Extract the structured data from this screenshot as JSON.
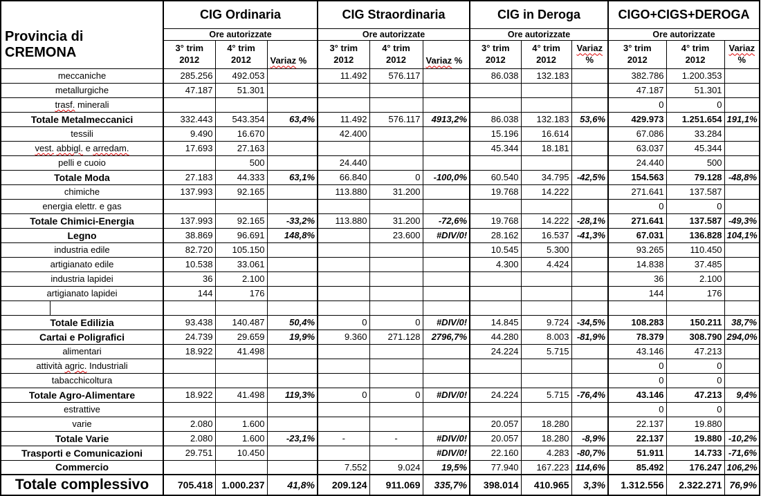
{
  "header": {
    "title_line1": "Provincia di",
    "title_line2": "CREMONA",
    "groups": [
      {
        "title": "CIG Ordinaria",
        "subtitle": "Ore autorizzate",
        "variaz_two_line": false
      },
      {
        "title": "CIG Straordinaria",
        "subtitle": "Ore autorizzate",
        "variaz_two_line": false
      },
      {
        "title": "CIG in Deroga",
        "subtitle": "Ore autorizzate",
        "variaz_two_line": true
      },
      {
        "title": "CIGO+CIGS+DEROGA",
        "subtitle": "Ore autorizzate",
        "variaz_two_line": true
      }
    ],
    "col_q3_line1": "3° trim",
    "col_q3_line2": "2012",
    "col_q4_line1": "4° trim",
    "col_q4_line2": "2012",
    "variaz_word": "Variaz",
    "percent_sign": "%"
  },
  "rows": [
    {
      "label": "meccaniche",
      "style": "plain",
      "squiggle": [],
      "cells": [
        "285.256",
        "492.053",
        "",
        "11.492",
        "576.117",
        "",
        "86.038",
        "132.183",
        "",
        "382.786",
        "1.200.353",
        ""
      ]
    },
    {
      "label": "metallurgiche",
      "style": "plain",
      "squiggle": [],
      "cells": [
        "47.187",
        "51.301",
        "",
        "",
        "",
        "",
        "",
        "",
        "",
        "47.187",
        "51.301",
        ""
      ]
    },
    {
      "label": "trasf. minerali",
      "style": "plain",
      "squiggle": [
        "trasf."
      ],
      "cells": [
        "",
        "",
        "",
        "",
        "",
        "",
        "",
        "",
        "",
        "0",
        "0",
        ""
      ]
    },
    {
      "label": "Totale Metalmeccanici",
      "style": "total",
      "squiggle": [],
      "cells": [
        "332.443",
        "543.354",
        "63,4%",
        "11.492",
        "576.117",
        "4913,2%",
        "86.038",
        "132.183",
        "53,6%",
        "429.973",
        "1.251.654",
        "191,1%"
      ]
    },
    {
      "label": "tessili",
      "style": "plain",
      "squiggle": [],
      "cells": [
        "9.490",
        "16.670",
        "",
        "42.400",
        "",
        "",
        "15.196",
        "16.614",
        "",
        "67.086",
        "33.284",
        ""
      ]
    },
    {
      "label": "vest. abbigl. e arredam.",
      "style": "plain",
      "squiggle": [
        "vest.",
        "abbigl.",
        "arredam."
      ],
      "cells": [
        "17.693",
        "27.163",
        "",
        "",
        "",
        "",
        "45.344",
        "18.181",
        "",
        "63.037",
        "45.344",
        ""
      ]
    },
    {
      "label": "pelli e cuoio",
      "style": "plain",
      "squiggle": [],
      "cells": [
        "",
        "500",
        "",
        "24.440",
        "",
        "",
        "",
        "",
        "",
        "24.440",
        "500",
        ""
      ]
    },
    {
      "label": "Totale Moda",
      "style": "total",
      "squiggle": [],
      "cells": [
        "27.183",
        "44.333",
        "63,1%",
        "66.840",
        "0",
        "-100,0%",
        "60.540",
        "34.795",
        "-42,5%",
        "154.563",
        "79.128",
        "-48,8%"
      ]
    },
    {
      "label": "chimiche",
      "style": "plain",
      "squiggle": [],
      "cells": [
        "137.993",
        "92.165",
        "",
        "113.880",
        "31.200",
        "",
        "19.768",
        "14.222",
        "",
        "271.641",
        "137.587",
        ""
      ]
    },
    {
      "label": "energia elettr. e gas",
      "style": "plain",
      "squiggle": [],
      "cells": [
        "",
        "",
        "",
        "",
        "",
        "",
        "",
        "",
        "",
        "0",
        "0",
        ""
      ]
    },
    {
      "label": "Totale Chimici-Energia",
      "style": "total",
      "squiggle": [],
      "cells": [
        "137.993",
        "92.165",
        "-33,2%",
        "113.880",
        "31.200",
        "-72,6%",
        "19.768",
        "14.222",
        "-28,1%",
        "271.641",
        "137.587",
        "-49,3%"
      ]
    },
    {
      "label": "Legno",
      "style": "total",
      "squiggle": [],
      "cells": [
        "38.869",
        "96.691",
        "148,8%",
        "",
        "23.600",
        "#DIV/0!",
        "28.162",
        "16.537",
        "-41,3%",
        "67.031",
        "136.828",
        "104,1%"
      ]
    },
    {
      "label": "industria edile",
      "style": "plain",
      "squiggle": [],
      "cells": [
        "82.720",
        "105.150",
        "",
        "",
        "",
        "",
        "10.545",
        "5.300",
        "",
        "93.265",
        "110.450",
        ""
      ]
    },
    {
      "label": "artigianato edile",
      "style": "plain",
      "squiggle": [],
      "cells": [
        "10.538",
        "33.061",
        "",
        "",
        "",
        "",
        "4.300",
        "4.424",
        "",
        "14.838",
        "37.485",
        ""
      ]
    },
    {
      "label": "industria lapidei",
      "style": "plain",
      "squiggle": [],
      "cells": [
        "36",
        "2.100",
        "",
        "",
        "",
        "",
        "",
        "",
        "",
        "36",
        "2.100",
        ""
      ]
    },
    {
      "label": "artigianato lapidei",
      "style": "plain",
      "squiggle": [],
      "cells": [
        "144",
        "176",
        "",
        "",
        "",
        "",
        "",
        "",
        "",
        "144",
        "176",
        ""
      ]
    },
    {
      "label": "",
      "style": "spacer",
      "squiggle": [],
      "cells": [
        "",
        "",
        "",
        "",
        "",
        "",
        "",
        "",
        "",
        "",
        "",
        ""
      ]
    },
    {
      "label": "Totale Edilizia",
      "style": "total",
      "squiggle": [],
      "cells": [
        "93.438",
        "140.487",
        "50,4%",
        "0",
        "0",
        "#DIV/0!",
        "14.845",
        "9.724",
        "-34,5%",
        "108.283",
        "150.211",
        "38,7%"
      ]
    },
    {
      "label": "Cartai e Poligrafici",
      "style": "total",
      "squiggle": [],
      "cells": [
        "24.739",
        "29.659",
        "19,9%",
        "9.360",
        "271.128",
        "2796,7%",
        "44.280",
        "8.003",
        "-81,9%",
        "78.379",
        "308.790",
        "294,0%"
      ]
    },
    {
      "label": "alimentari",
      "style": "plain",
      "squiggle": [],
      "cells": [
        "18.922",
        "41.498",
        "",
        "",
        "",
        "",
        "24.224",
        "5.715",
        "",
        "43.146",
        "47.213",
        ""
      ]
    },
    {
      "label": "attività agric. Industriali",
      "style": "plain",
      "squiggle": [
        "agric."
      ],
      "cells": [
        "",
        "",
        "",
        "",
        "",
        "",
        "",
        "",
        "",
        "0",
        "0",
        ""
      ]
    },
    {
      "label": "tabacchicoltura",
      "style": "plain",
      "squiggle": [],
      "cells": [
        "",
        "",
        "",
        "",
        "",
        "",
        "",
        "",
        "",
        "0",
        "0",
        ""
      ]
    },
    {
      "label": "Totale Agro-Alimentare",
      "style": "total",
      "squiggle": [],
      "cells": [
        "18.922",
        "41.498",
        "119,3%",
        "0",
        "0",
        "#DIV/0!",
        "24.224",
        "5.715",
        "-76,4%",
        "43.146",
        "47.213",
        "9,4%"
      ]
    },
    {
      "label": "estrattive",
      "style": "plain",
      "squiggle": [],
      "cells": [
        "",
        "",
        "",
        "",
        "",
        "",
        "",
        "",
        "",
        "0",
        "0",
        ""
      ]
    },
    {
      "label": "varie",
      "style": "plain",
      "squiggle": [],
      "cells": [
        "2.080",
        "1.600",
        "",
        "",
        "",
        "",
        "20.057",
        "18.280",
        "",
        "22.137",
        "19.880",
        ""
      ]
    },
    {
      "label": "Totale Varie",
      "style": "total",
      "squiggle": [],
      "cells": [
        "2.080",
        "1.600",
        "-23,1%",
        "-",
        "-",
        "#DIV/0!",
        "20.057",
        "18.280",
        "-8,9%",
        "22.137",
        "19.880",
        "-10,2%"
      ]
    },
    {
      "label": "Trasporti e Comunicazioni",
      "style": "total",
      "squiggle": [],
      "cells": [
        "29.751",
        "10.450",
        "",
        "",
        "",
        "#DIV/0!",
        "22.160",
        "4.283",
        "-80,7%",
        "51.911",
        "14.733",
        "-71,6%"
      ]
    },
    {
      "label": "Commercio",
      "style": "total",
      "squiggle": [],
      "cells": [
        "",
        "",
        "",
        "7.552",
        "9.024",
        "19,5%",
        "77.940",
        "167.223",
        "114,6%",
        "85.492",
        "176.247",
        "106,2%"
      ]
    },
    {
      "label": "Totale complessivo",
      "style": "grand",
      "squiggle": [],
      "cells": [
        "705.418",
        "1.000.237",
        "41,8%",
        "209.124",
        "911.069",
        "335,7%",
        "398.014",
        "410.965",
        "3,3%",
        "1.312.556",
        "2.322.271",
        "76,9%"
      ]
    }
  ],
  "colors": {
    "border": "#000000",
    "text": "#000000",
    "background": "#ffffff",
    "spellcheck_underline": "#dd0000"
  }
}
